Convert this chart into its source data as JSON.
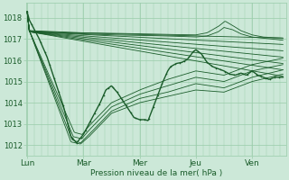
{
  "xlabel": "Pression niveau de la mer( hPa )",
  "xtick_labels": [
    "Lun",
    "Mar",
    "Mer",
    "Jeu",
    "Ven"
  ],
  "xtick_positions": [
    0,
    1,
    2,
    3,
    4
  ],
  "ylim": [
    1011.5,
    1018.7
  ],
  "ytick_values": [
    1012,
    1013,
    1014,
    1015,
    1016,
    1017,
    1018
  ],
  "xlim": [
    -0.02,
    4.6
  ],
  "bg_color": "#cce8d8",
  "grid_color": "#99ccaa",
  "line_color": "#1a5c2a",
  "lw_thin": 0.6,
  "lw_main": 1.0,
  "figsize": [
    3.2,
    2.0
  ],
  "dpi": 100,
  "ensemble_upper": [
    {
      "xp": [
        0,
        0.04,
        4.55
      ],
      "yp": [
        1018.3,
        1017.35,
        1017.05
      ]
    },
    {
      "xp": [
        0,
        0.04,
        4.55
      ],
      "yp": [
        1018.3,
        1017.35,
        1016.75
      ]
    },
    {
      "xp": [
        0,
        0.04,
        4.55
      ],
      "yp": [
        1018.3,
        1017.35,
        1016.45
      ]
    },
    {
      "xp": [
        0,
        0.04,
        4.55
      ],
      "yp": [
        1018.3,
        1017.35,
        1016.15
      ]
    },
    {
      "xp": [
        0,
        0.04,
        4.55
      ],
      "yp": [
        1018.3,
        1017.35,
        1015.85
      ]
    },
    {
      "xp": [
        0,
        0.04,
        4.55
      ],
      "yp": [
        1018.3,
        1017.35,
        1015.55
      ]
    },
    {
      "xp": [
        0,
        0.04,
        4.55
      ],
      "yp": [
        1018.3,
        1017.35,
        1015.25
      ]
    }
  ],
  "ensemble_peak": [
    {
      "xp": [
        0,
        0.04,
        0.5,
        1.0,
        1.5,
        2.0,
        2.5,
        3.0,
        3.2,
        3.4,
        3.5,
        3.65,
        3.8,
        4.0,
        4.2,
        4.55
      ],
      "yp": [
        1018.3,
        1017.4,
        1017.32,
        1017.25,
        1017.2,
        1017.18,
        1017.15,
        1017.1,
        1017.15,
        1017.35,
        1017.55,
        1017.45,
        1017.25,
        1017.1,
        1017.05,
        1016.95
      ]
    },
    {
      "xp": [
        0,
        0.04,
        0.5,
        1.0,
        1.5,
        2.0,
        2.5,
        3.0,
        3.2,
        3.4,
        3.52,
        3.65,
        3.8,
        4.0,
        4.2,
        4.55
      ],
      "yp": [
        1018.3,
        1017.4,
        1017.35,
        1017.3,
        1017.28,
        1017.25,
        1017.22,
        1017.2,
        1017.3,
        1017.6,
        1017.85,
        1017.65,
        1017.4,
        1017.2,
        1017.1,
        1017.05
      ]
    }
  ],
  "ensemble_steep": [
    {
      "xp": [
        0,
        0.04,
        0.78,
        0.95,
        1.1,
        1.5,
        2.0,
        2.5,
        3.0,
        3.5,
        4.0,
        4.55
      ],
      "yp": [
        1018.3,
        1017.4,
        1012.15,
        1012.05,
        1012.4,
        1013.5,
        1014.0,
        1014.3,
        1014.6,
        1014.5,
        1015.0,
        1015.35
      ]
    },
    {
      "xp": [
        0,
        0.04,
        0.8,
        0.95,
        1.1,
        1.5,
        2.0,
        2.5,
        3.0,
        3.5,
        4.0,
        4.55
      ],
      "yp": [
        1018.3,
        1017.4,
        1012.25,
        1012.1,
        1012.5,
        1013.6,
        1014.2,
        1014.5,
        1014.9,
        1014.7,
        1015.2,
        1015.55
      ]
    },
    {
      "xp": [
        0,
        0.04,
        0.82,
        0.97,
        1.1,
        1.5,
        2.0,
        2.5,
        3.0,
        3.5,
        4.0,
        4.55
      ],
      "yp": [
        1018.3,
        1017.4,
        1012.4,
        1012.3,
        1012.7,
        1013.8,
        1014.4,
        1014.8,
        1015.2,
        1015.0,
        1015.5,
        1015.8
      ]
    },
    {
      "xp": [
        0,
        0.04,
        0.84,
        0.98,
        1.1,
        1.5,
        2.0,
        2.5,
        3.0,
        3.5,
        4.0,
        4.55
      ],
      "yp": [
        1018.3,
        1017.4,
        1012.6,
        1012.5,
        1012.9,
        1014.0,
        1014.6,
        1015.1,
        1015.5,
        1015.3,
        1015.8,
        1016.1
      ]
    }
  ],
  "main_xp": [
    0,
    0.04,
    0.1,
    0.2,
    0.35,
    0.5,
    0.65,
    0.78,
    0.88,
    1.0,
    1.1,
    1.2,
    1.3,
    1.4,
    1.5,
    1.6,
    1.7,
    1.8,
    1.9,
    2.0,
    2.1,
    2.15,
    2.3,
    2.4,
    2.5,
    2.55,
    2.65,
    2.75,
    2.85,
    2.95,
    3.0,
    3.1,
    3.2,
    3.3,
    3.4,
    3.5,
    3.6,
    3.7,
    3.8,
    3.9,
    4.0,
    4.1,
    4.2,
    4.3,
    4.4,
    4.55
  ],
  "main_yp": [
    1018.3,
    1017.9,
    1017.6,
    1017.1,
    1016.2,
    1015.0,
    1013.8,
    1012.4,
    1012.1,
    1012.5,
    1013.0,
    1013.5,
    1014.0,
    1014.6,
    1014.8,
    1014.5,
    1014.1,
    1013.7,
    1013.3,
    1013.2,
    1013.2,
    1013.15,
    1014.2,
    1014.9,
    1015.5,
    1015.7,
    1015.85,
    1015.9,
    1016.05,
    1016.4,
    1016.5,
    1016.3,
    1015.9,
    1015.7,
    1015.6,
    1015.5,
    1015.35,
    1015.3,
    1015.4,
    1015.3,
    1015.5,
    1015.3,
    1015.2,
    1015.1,
    1015.2,
    1015.2
  ]
}
